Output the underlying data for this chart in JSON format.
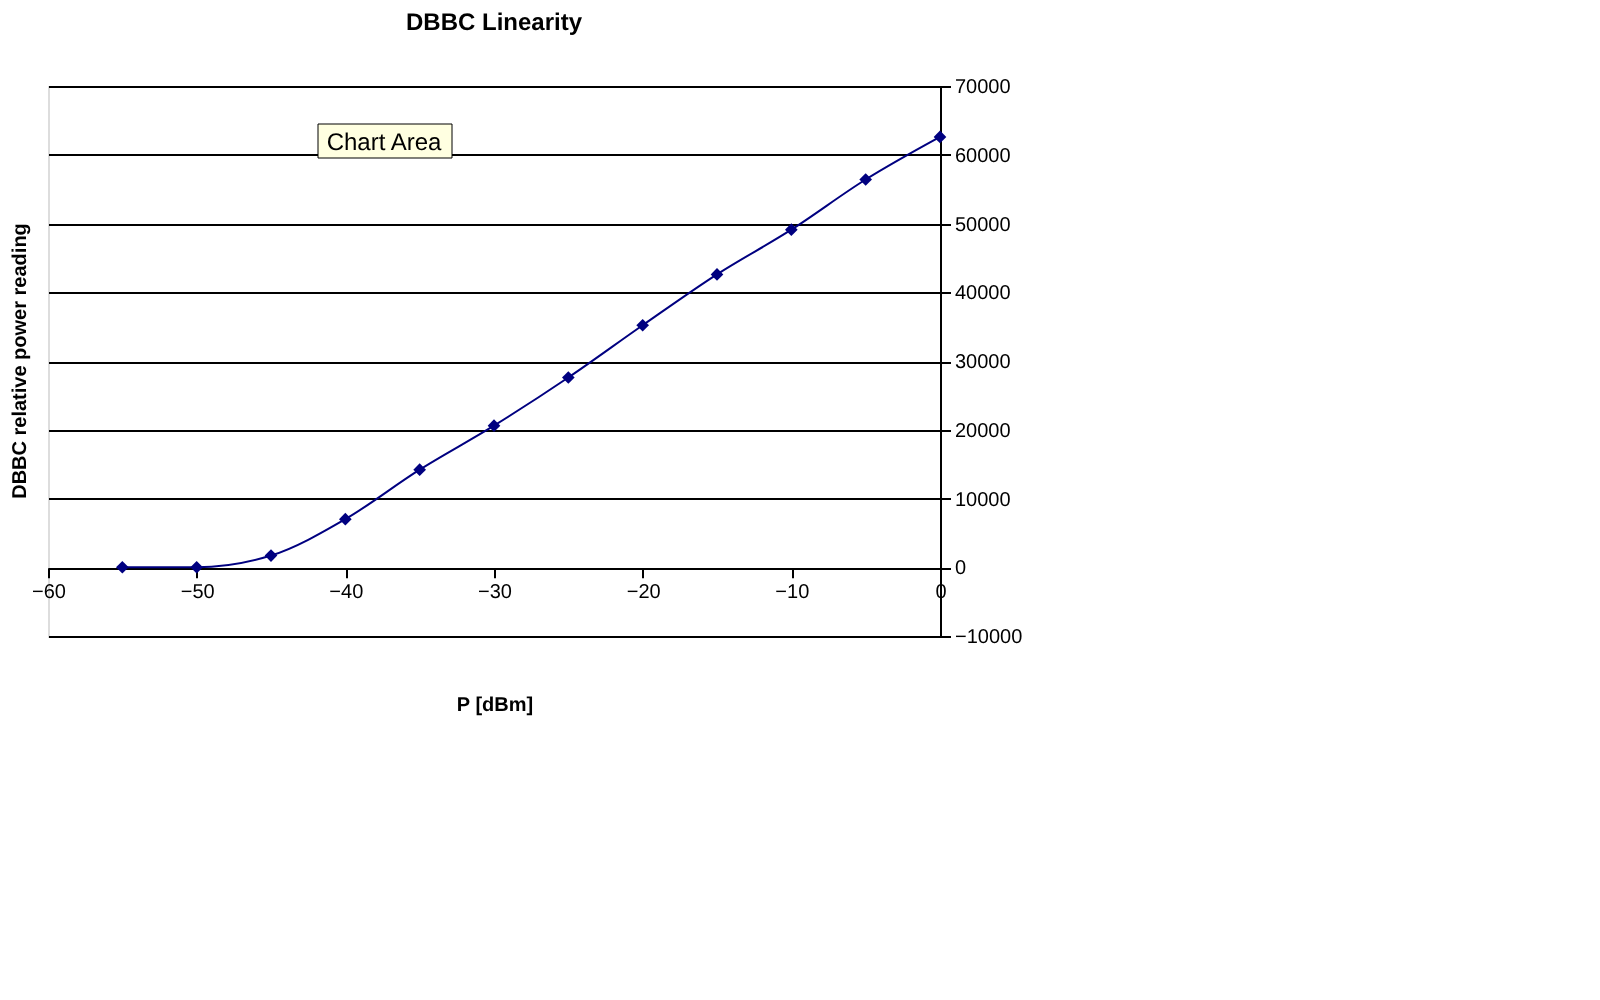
{
  "chart_data": {
    "type": "line",
    "title": "DBBC Linearity",
    "xlabel": "P [dBm]",
    "ylabel": "DBBC relative power reading",
    "x": [
      -55,
      -50,
      -45,
      -40,
      -35,
      -30,
      -25,
      -20,
      -15,
      -10,
      -5,
      0
    ],
    "series": [
      {
        "color": "#000080",
        "values": [
          0,
          0,
          1700,
          7000,
          14200,
          20600,
          27600,
          35200,
          42600,
          49100,
          56400,
          62600
        ]
      }
    ],
    "xlim": [
      -60,
      0
    ],
    "xticks": [
      -60,
      -50,
      -40,
      -30,
      -20,
      -10,
      0
    ],
    "ylim": [
      -10000,
      70000
    ],
    "yticks": [
      -10000,
      0,
      10000,
      20000,
      30000,
      40000,
      50000,
      60000,
      70000
    ],
    "grid": "y",
    "marker": "diamond",
    "line_style": "solid",
    "annotations": [
      "Chart Area"
    ]
  }
}
